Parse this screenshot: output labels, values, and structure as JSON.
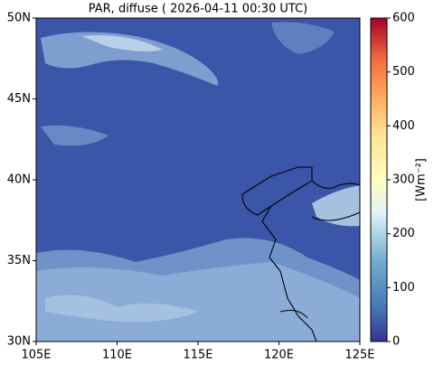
{
  "map": {
    "title": "PAR, diffuse ( 2026-04-11 00:30 UTC)",
    "lonlim": [
      105,
      125
    ],
    "latlim": [
      30,
      50
    ],
    "lon_ticks": [
      {
        "value": 105,
        "label": "105E"
      },
      {
        "value": 110,
        "label": "110E"
      },
      {
        "value": 115,
        "label": "115E"
      },
      {
        "value": 120,
        "label": "120E"
      },
      {
        "value": 125,
        "label": "125E"
      }
    ],
    "lat_ticks": [
      {
        "value": 30,
        "label": "30N"
      },
      {
        "value": 35,
        "label": "35N"
      },
      {
        "value": 40,
        "label": "40N"
      },
      {
        "value": 45,
        "label": "45N"
      },
      {
        "value": 50,
        "label": "50N"
      }
    ],
    "colorbar": {
      "label": "[Wm⁻²]",
      "lim": [
        0,
        600
      ],
      "ticks": [
        0,
        100,
        200,
        300,
        400,
        500,
        600
      ]
    }
  }
}
